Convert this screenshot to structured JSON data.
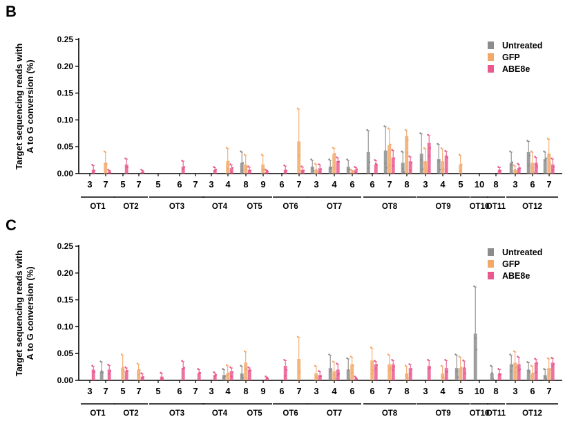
{
  "colors": {
    "Untreated": "#8c8c8c",
    "GFP": "#f2a869",
    "ABE8e": "#e9598e"
  },
  "legend": [
    "Untreated",
    "GFP",
    "ABE8e"
  ],
  "groups": [
    "OT1",
    "OT2",
    "OT3",
    "OT4",
    "OT5",
    "OT6",
    "OT7",
    "OT8",
    "OT9",
    "OT10",
    "OT11",
    "OT12"
  ],
  "chart_data": [
    {
      "panel": "B",
      "type": "bar",
      "ylabel": "Target sequencing reads with A to G conversion (%)",
      "ylim": [
        0,
        0.25
      ],
      "yticks": [
        "0.00",
        "0.05",
        "0.10",
        "0.15",
        "0.20",
        "0.25"
      ],
      "legend_position": "top-right",
      "categories": [
        {
          "x": "3",
          "group": "OT1"
        },
        {
          "x": "7",
          "group": "OT1"
        },
        {
          "x": "5",
          "group": "OT2"
        },
        {
          "x": "7",
          "group": "OT2"
        },
        {
          "x": "5",
          "group": "OT3"
        },
        {
          "x": "6",
          "group": "OT3"
        },
        {
          "x": "7",
          "group": "OT3"
        },
        {
          "x": "3",
          "group": "OT4"
        },
        {
          "x": "4",
          "group": "OT4"
        },
        {
          "x": "8",
          "group": "OT5"
        },
        {
          "x": "9",
          "group": "OT5"
        },
        {
          "x": "6",
          "group": "OT6"
        },
        {
          "x": "7",
          "group": "OT6"
        },
        {
          "x": "3",
          "group": "OT7"
        },
        {
          "x": "4",
          "group": "OT7"
        },
        {
          "x": "6",
          "group": "OT7"
        },
        {
          "x": "6",
          "group": "OT8"
        },
        {
          "x": "7",
          "group": "OT8"
        },
        {
          "x": "8",
          "group": "OT8"
        },
        {
          "x": "3",
          "group": "OT9"
        },
        {
          "x": "4",
          "group": "OT9"
        },
        {
          "x": "5",
          "group": "OT9"
        },
        {
          "x": "10",
          "group": "OT10"
        },
        {
          "x": "8",
          "group": "OT11"
        },
        {
          "x": "3",
          "group": "OT12"
        },
        {
          "x": "6",
          "group": "OT12"
        },
        {
          "x": "7",
          "group": "OT12"
        }
      ],
      "series": [
        {
          "name": "Untreated",
          "values": [
            0,
            0,
            0,
            0,
            0,
            0,
            0,
            0,
            0,
            0.02,
            0,
            0,
            0,
            0.013,
            0.013,
            0.013,
            0.04,
            0.043,
            0.02,
            0.037,
            0.027,
            0,
            0,
            0,
            0.02,
            0.04,
            0.027
          ],
          "errors": [
            0,
            0,
            0,
            0,
            0,
            0,
            0,
            0,
            0,
            0.02,
            0,
            0,
            0,
            0.012,
            0.012,
            0.012,
            0.04,
            0.044,
            0.02,
            0.037,
            0.027,
            0,
            0,
            0,
            0.02,
            0.02,
            0.013
          ]
        },
        {
          "name": "GFP",
          "values": [
            0,
            0.02,
            0,
            0,
            0,
            0,
            0,
            0,
            0.023,
            0.017,
            0.017,
            0,
            0.06,
            0.007,
            0.037,
            0.003,
            0,
            0.053,
            0.07,
            0.023,
            0.023,
            0.017,
            0,
            0,
            0.007,
            0.02,
            0.037
          ],
          "errors": [
            0,
            0.02,
            0,
            0,
            0,
            0,
            0,
            0,
            0.024,
            0.017,
            0.017,
            0,
            0.06,
            0.01,
            0.01,
            0.003,
            0,
            0.03,
            0.01,
            0.023,
            0.023,
            0.017,
            0,
            0,
            0.007,
            0.02,
            0.027
          ]
        },
        {
          "name": "ABE8e",
          "values": [
            0.007,
            0.003,
            0.017,
            0.003,
            0,
            0.013,
            0,
            0.007,
            0.01,
            0.007,
            0.003,
            0.007,
            0.007,
            0.01,
            0.023,
            0.007,
            0.017,
            0.03,
            0.023,
            0.057,
            0.033,
            0,
            0,
            0.007,
            0.01,
            0.02,
            0.017
          ],
          "errors": [
            0.008,
            0.003,
            0.01,
            0.003,
            0,
            0.01,
            0,
            0.004,
            0.006,
            0.005,
            0.003,
            0.007,
            0.005,
            0.006,
            0.006,
            0.004,
            0.007,
            0.013,
            0.008,
            0.014,
            0.008,
            0,
            0,
            0.004,
            0.007,
            0.01,
            0.01
          ]
        }
      ]
    },
    {
      "panel": "C",
      "type": "bar",
      "ylabel": "Target sequencing reads with A to G conversion (%)",
      "ylim": [
        0,
        0.25
      ],
      "yticks": [
        "0.00",
        "0.05",
        "0.10",
        "0.15",
        "0.20",
        "0.25"
      ],
      "legend_position": "top-right",
      "categories": [
        {
          "x": "3",
          "group": "OT1"
        },
        {
          "x": "7",
          "group": "OT1"
        },
        {
          "x": "5",
          "group": "OT2"
        },
        {
          "x": "7",
          "group": "OT2"
        },
        {
          "x": "5",
          "group": "OT3"
        },
        {
          "x": "6",
          "group": "OT3"
        },
        {
          "x": "7",
          "group": "OT3"
        },
        {
          "x": "3",
          "group": "OT4"
        },
        {
          "x": "4",
          "group": "OT4"
        },
        {
          "x": "8",
          "group": "OT5"
        },
        {
          "x": "9",
          "group": "OT5"
        },
        {
          "x": "6",
          "group": "OT6"
        },
        {
          "x": "7",
          "group": "OT6"
        },
        {
          "x": "3",
          "group": "OT7"
        },
        {
          "x": "4",
          "group": "OT7"
        },
        {
          "x": "6",
          "group": "OT7"
        },
        {
          "x": "6",
          "group": "OT8"
        },
        {
          "x": "7",
          "group": "OT8"
        },
        {
          "x": "8",
          "group": "OT8"
        },
        {
          "x": "3",
          "group": "OT9"
        },
        {
          "x": "4",
          "group": "OT9"
        },
        {
          "x": "5",
          "group": "OT9"
        },
        {
          "x": "10",
          "group": "OT10"
        },
        {
          "x": "8",
          "group": "OT11"
        },
        {
          "x": "3",
          "group": "OT12"
        },
        {
          "x": "6",
          "group": "OT12"
        },
        {
          "x": "7",
          "group": "OT12"
        }
      ],
      "series": [
        {
          "name": "Untreated",
          "values": [
            0,
            0.017,
            0,
            0,
            0,
            0,
            0,
            0,
            0.01,
            0.013,
            0,
            0,
            0,
            0,
            0.023,
            0.02,
            0,
            0,
            0,
            0,
            0,
            0.023,
            0.087,
            0.013,
            0.03,
            0.02,
            0.01
          ],
          "errors": [
            0,
            0.017,
            0,
            0,
            0,
            0,
            0,
            0,
            0.01,
            0.013,
            0,
            0,
            0,
            0,
            0.024,
            0.02,
            0,
            0,
            0,
            0,
            0,
            0.024,
            0.087,
            0.013,
            0.017,
            0.013,
            0.01
          ]
        },
        {
          "name": "GFP",
          "values": [
            0,
            0,
            0.023,
            0.02,
            0,
            0,
            0,
            0,
            0.013,
            0.033,
            0,
            0,
            0.04,
            0.013,
            0.017,
            0.03,
            0.037,
            0.03,
            0.013,
            0,
            0.013,
            0.023,
            0,
            0,
            0.033,
            0.013,
            0.023
          ],
          "errors": [
            0,
            0,
            0.024,
            0.01,
            0,
            0,
            0,
            0,
            0.014,
            0.02,
            0,
            0,
            0.04,
            0.013,
            0.017,
            0.013,
            0.023,
            0.017,
            0.013,
            0,
            0.013,
            0.02,
            0,
            0,
            0.02,
            0.013,
            0.017
          ]
        },
        {
          "name": "ABE8e",
          "values": [
            0.02,
            0.02,
            0.017,
            0.007,
            0.007,
            0.023,
            0.013,
            0.01,
            0.017,
            0.02,
            0.003,
            0.027,
            0,
            0.01,
            0.02,
            0.003,
            0.03,
            0.03,
            0.023,
            0.027,
            0.023,
            0.023,
            0,
            0.013,
            0.03,
            0.033,
            0.033
          ],
          "errors": [
            0.006,
            0.008,
            0.006,
            0.005,
            0.006,
            0.012,
            0.007,
            0.004,
            0.006,
            0.003,
            0.003,
            0.01,
            0,
            0.006,
            0.01,
            0.003,
            0.005,
            0.007,
            0.006,
            0.01,
            0.014,
            0.013,
            0,
            0.007,
            0.013,
            0.006,
            0.008
          ]
        }
      ]
    }
  ]
}
